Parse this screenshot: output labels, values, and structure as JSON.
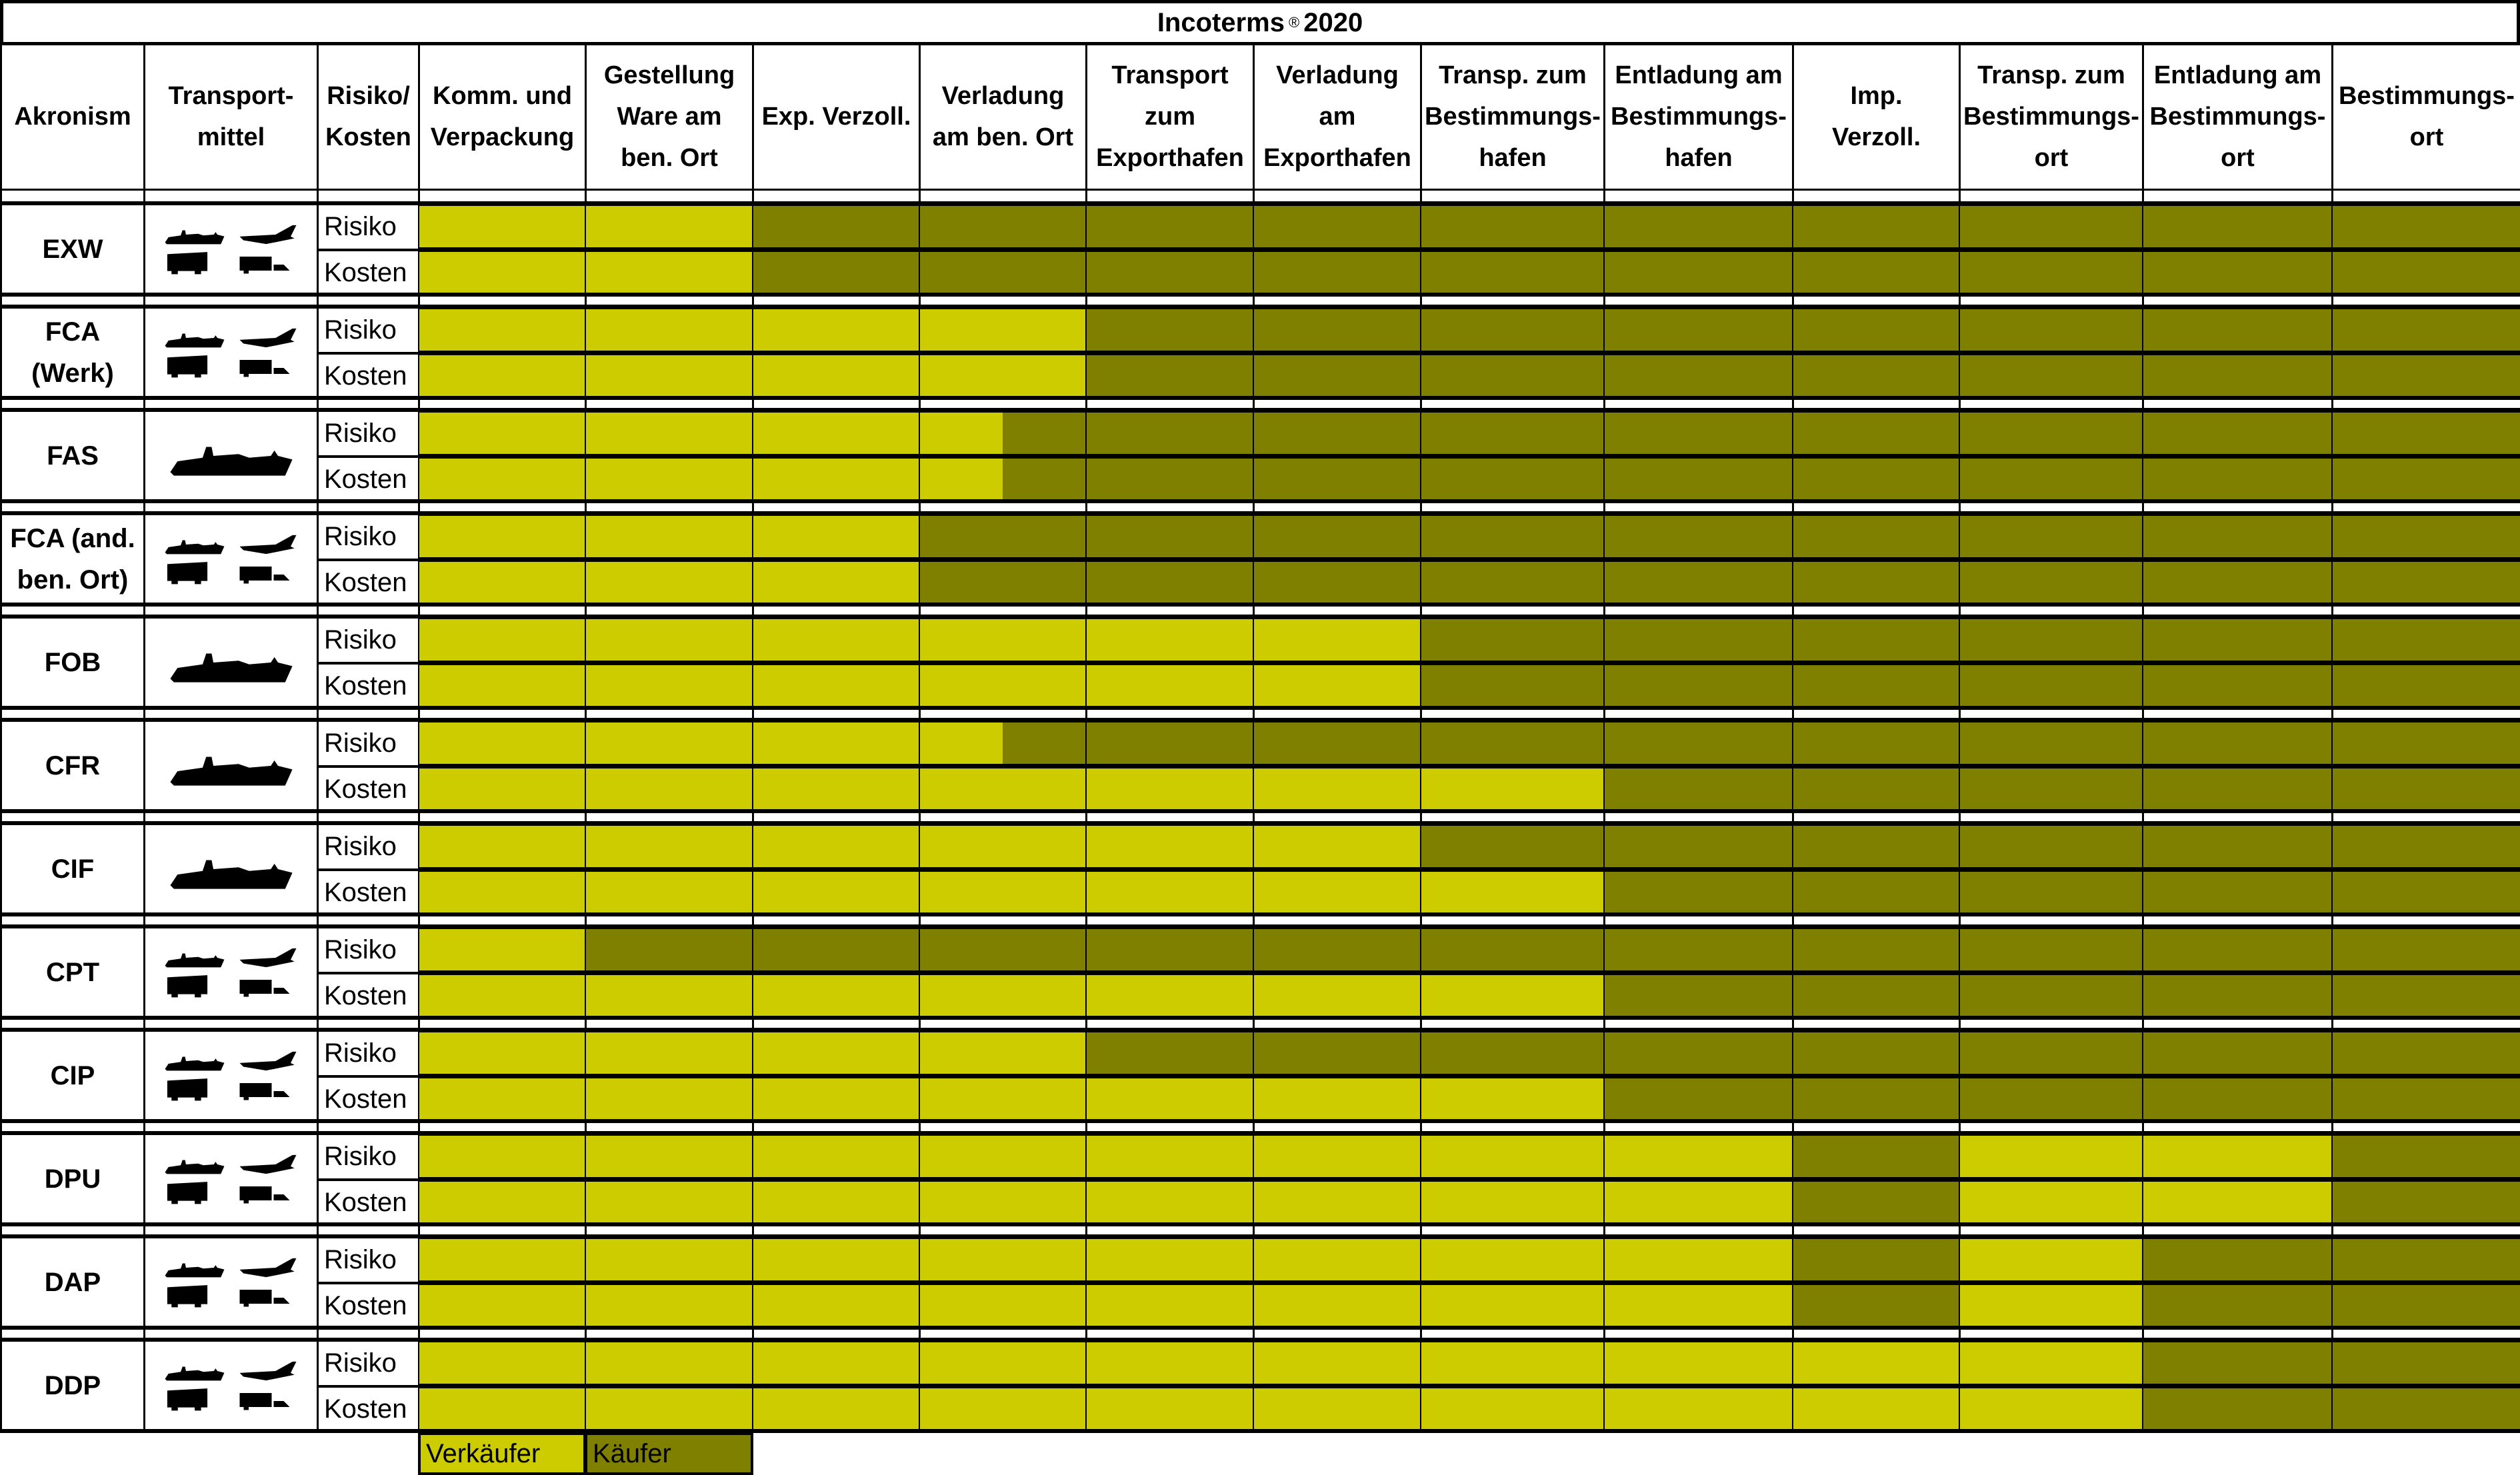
{
  "title": {
    "main": "Incoterms",
    "reg": "®",
    "year": "2020"
  },
  "colors": {
    "seller": "#cccc00",
    "buyer": "#808000"
  },
  "headers": [
    "Akronism",
    "Transport-\nmittel",
    "Risiko/\nKosten",
    "Komm. und\nVerpackung",
    "Gestellung\nWare am\nben. Ort",
    "Exp. Verzoll.",
    "Verladung\nam ben. Ort",
    "Transport\nzum\nExporthafen",
    "Verladung\nam\nExporthafen",
    "Transp. zum\nBestimmungs-\nhafen",
    "Entladung am\nBestimmungs-\nhafen",
    "Imp.\nVerzoll.",
    "Transp. zum\nBestimmungs-\nort",
    "Entladung am\nBestimmungs-\nort",
    "Bestimmungs-\nort"
  ],
  "row_labels": {
    "risk": "Risiko",
    "cost": "Kosten"
  },
  "icons": {
    "ship": "ship-icon",
    "plane": "airplane-icon",
    "train": "train-icon",
    "truck": "truck-icon"
  },
  "terms": [
    {
      "name": "EXW",
      "transport": "all",
      "risk": "SSBBBBBBBBBB",
      "cost": "SSBBBBBBBBBB"
    },
    {
      "name": "FCA\n(Werk)",
      "transport": "all",
      "risk": "SSSSBBBBBBBB",
      "cost": "SSSSBBBBBBBB"
    },
    {
      "name": "FAS",
      "transport": "sea",
      "risk": "SSSHBBBBBBBB",
      "cost": "SSSHBBBBBBBB"
    },
    {
      "name": "FCA (and.\nben. Ort)",
      "transport": "all",
      "risk": "SSSBBBBBBBBB",
      "cost": "SSSBBBBBBBBB"
    },
    {
      "name": "FOB",
      "transport": "sea",
      "risk": "SSSSSSBBBBBB",
      "cost": "SSSSSSBBBBBB"
    },
    {
      "name": "CFR",
      "transport": "sea",
      "risk": "SSSHBBBBBBBB",
      "cost": "SSSSSSSBBBBB"
    },
    {
      "name": "CIF",
      "transport": "sea",
      "risk": "SSSSSSBBBBBB",
      "cost": "SSSSSSSBBBBB"
    },
    {
      "name": "CPT",
      "transport": "all",
      "risk": "SBBBBBBBBBBB",
      "cost": "SSSSSSSBBBBB"
    },
    {
      "name": "CIP",
      "transport": "all",
      "risk": "SSSSBBBBBBBB",
      "cost": "SSSSSSSBBBBB"
    },
    {
      "name": "DPU",
      "transport": "all",
      "risk": "SSSSSSSSBSSB",
      "cost": "SSSSSSSSBSSB"
    },
    {
      "name": "DAP",
      "transport": "all",
      "risk": "SSSSSSSSBSBB",
      "cost": "SSSSSSSSBSBB"
    },
    {
      "name": "DDP",
      "transport": "all",
      "risk": "SSSSSSSSSSBB",
      "cost": "SSSSSSSSSSBB"
    }
  ],
  "legend": {
    "seller": "Verkäufer",
    "buyer": "Käufer"
  }
}
